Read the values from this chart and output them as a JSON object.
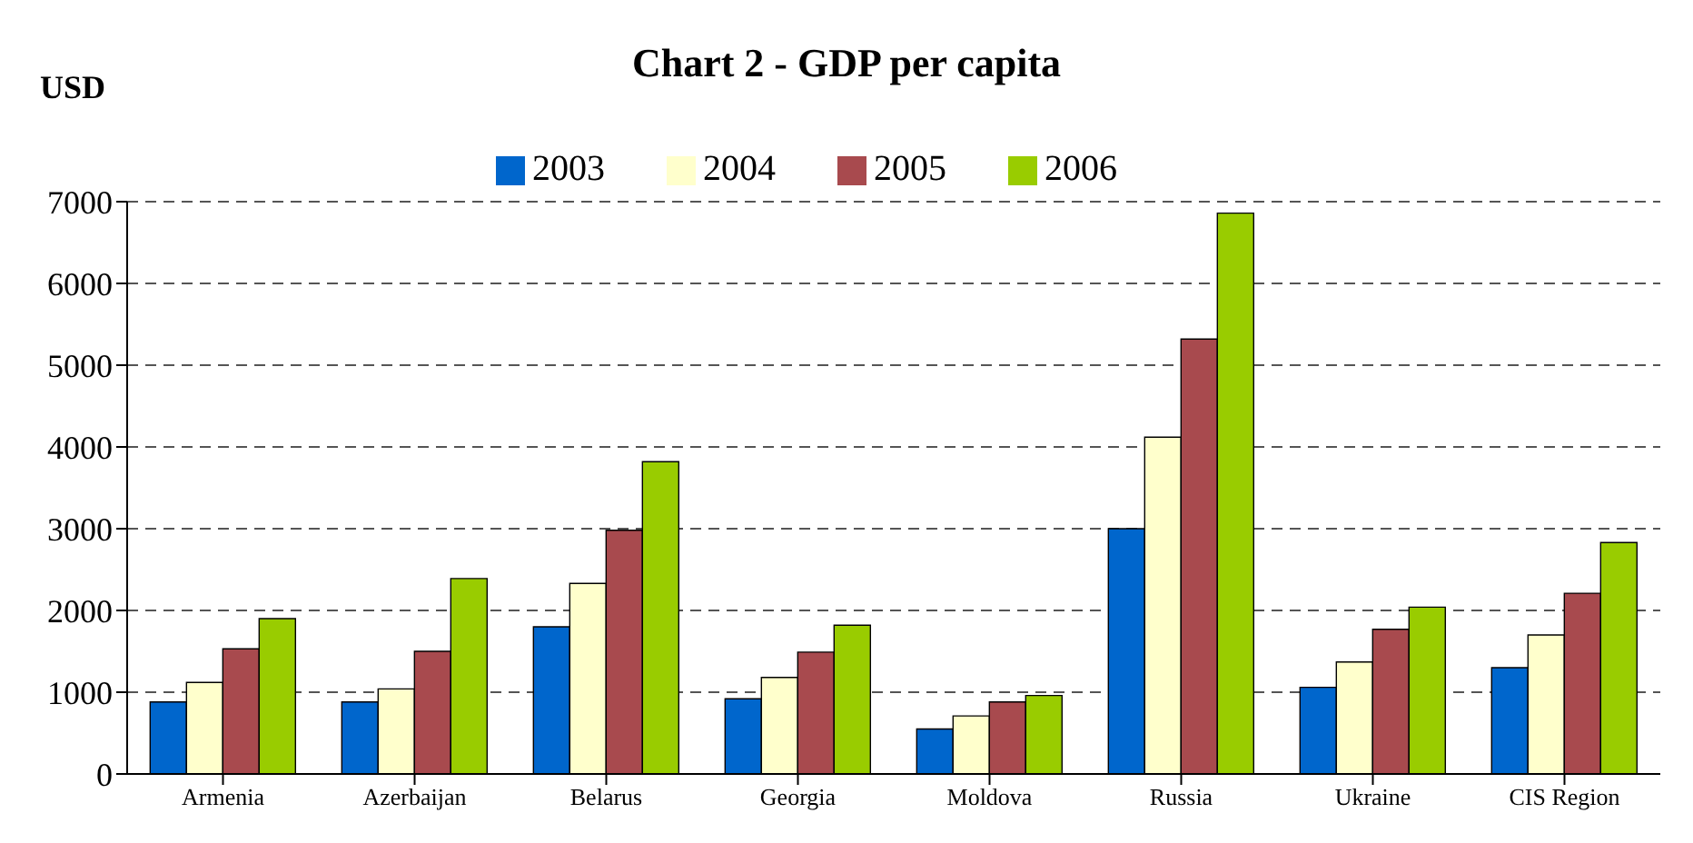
{
  "chart_data": {
    "type": "bar",
    "title": "Chart 2 - GDP per capita",
    "ylabel": "USD",
    "categories": [
      "Armenia",
      "Azerbaijan",
      "Belarus",
      "Georgia",
      "Moldova",
      "Russia",
      "Ukraine",
      "CIS Region"
    ],
    "series": [
      {
        "name": "2003",
        "color": "#0066cc",
        "values": [
          880,
          880,
          1800,
          920,
          550,
          3000,
          1060,
          1300
        ]
      },
      {
        "name": "2004",
        "color": "#ffffcc",
        "values": [
          1120,
          1040,
          2330,
          1180,
          710,
          4120,
          1370,
          1700
        ]
      },
      {
        "name": "2005",
        "color": "#a84a4e",
        "values": [
          1530,
          1500,
          2980,
          1490,
          880,
          5320,
          1770,
          2210
        ]
      },
      {
        "name": "2006",
        "color": "#99cc00",
        "values": [
          1900,
          2390,
          3820,
          1820,
          960,
          6860,
          2040,
          2830
        ]
      }
    ],
    "ylim": [
      0,
      7000
    ],
    "yticks": [
      0,
      1000,
      2000,
      3000,
      4000,
      5000,
      6000,
      7000
    ],
    "grid": "y",
    "legend": "top"
  }
}
